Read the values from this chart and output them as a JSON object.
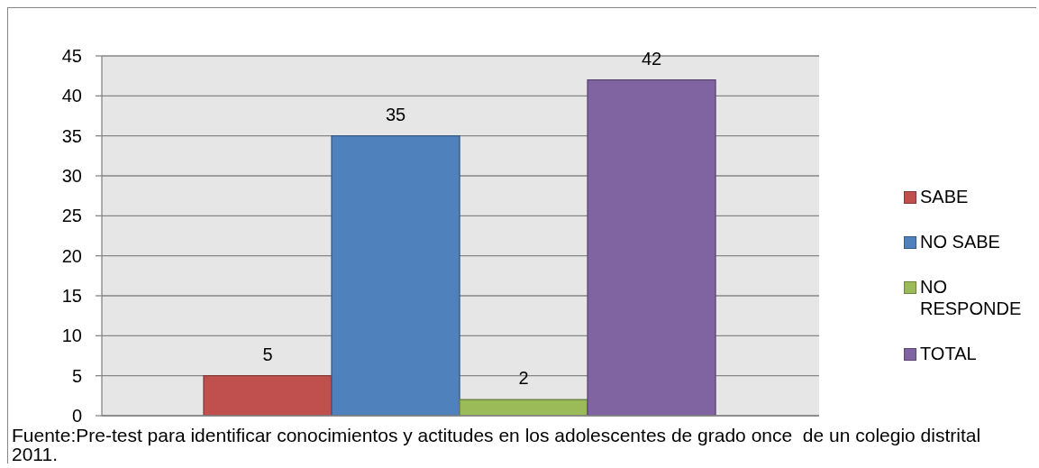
{
  "chart_data": {
    "type": "bar",
    "categories": [
      null
    ],
    "series": [
      {
        "name": "SABE",
        "color": "#c0504d",
        "values": [
          5
        ]
      },
      {
        "name": "NO SABE",
        "color": "#4f81bd",
        "values": [
          35
        ]
      },
      {
        "name": "NO RESPONDE",
        "color": "#9bbb59",
        "values": [
          2
        ]
      },
      {
        "name": "TOTAL",
        "color": "#8064a2",
        "values": [
          42
        ]
      }
    ],
    "ylim": [
      0,
      45
    ],
    "yticks": [
      0,
      5,
      10,
      15,
      20,
      25,
      30,
      35,
      40,
      45
    ],
    "grid": "y",
    "legend": "right",
    "data_labels": true,
    "tick_labels": "y",
    "annotations": [
      "Fuente:Pre-test para identificar conocimientos y actitudes en los adolescentes de grado once  de un colegio distrital 2011."
    ]
  }
}
